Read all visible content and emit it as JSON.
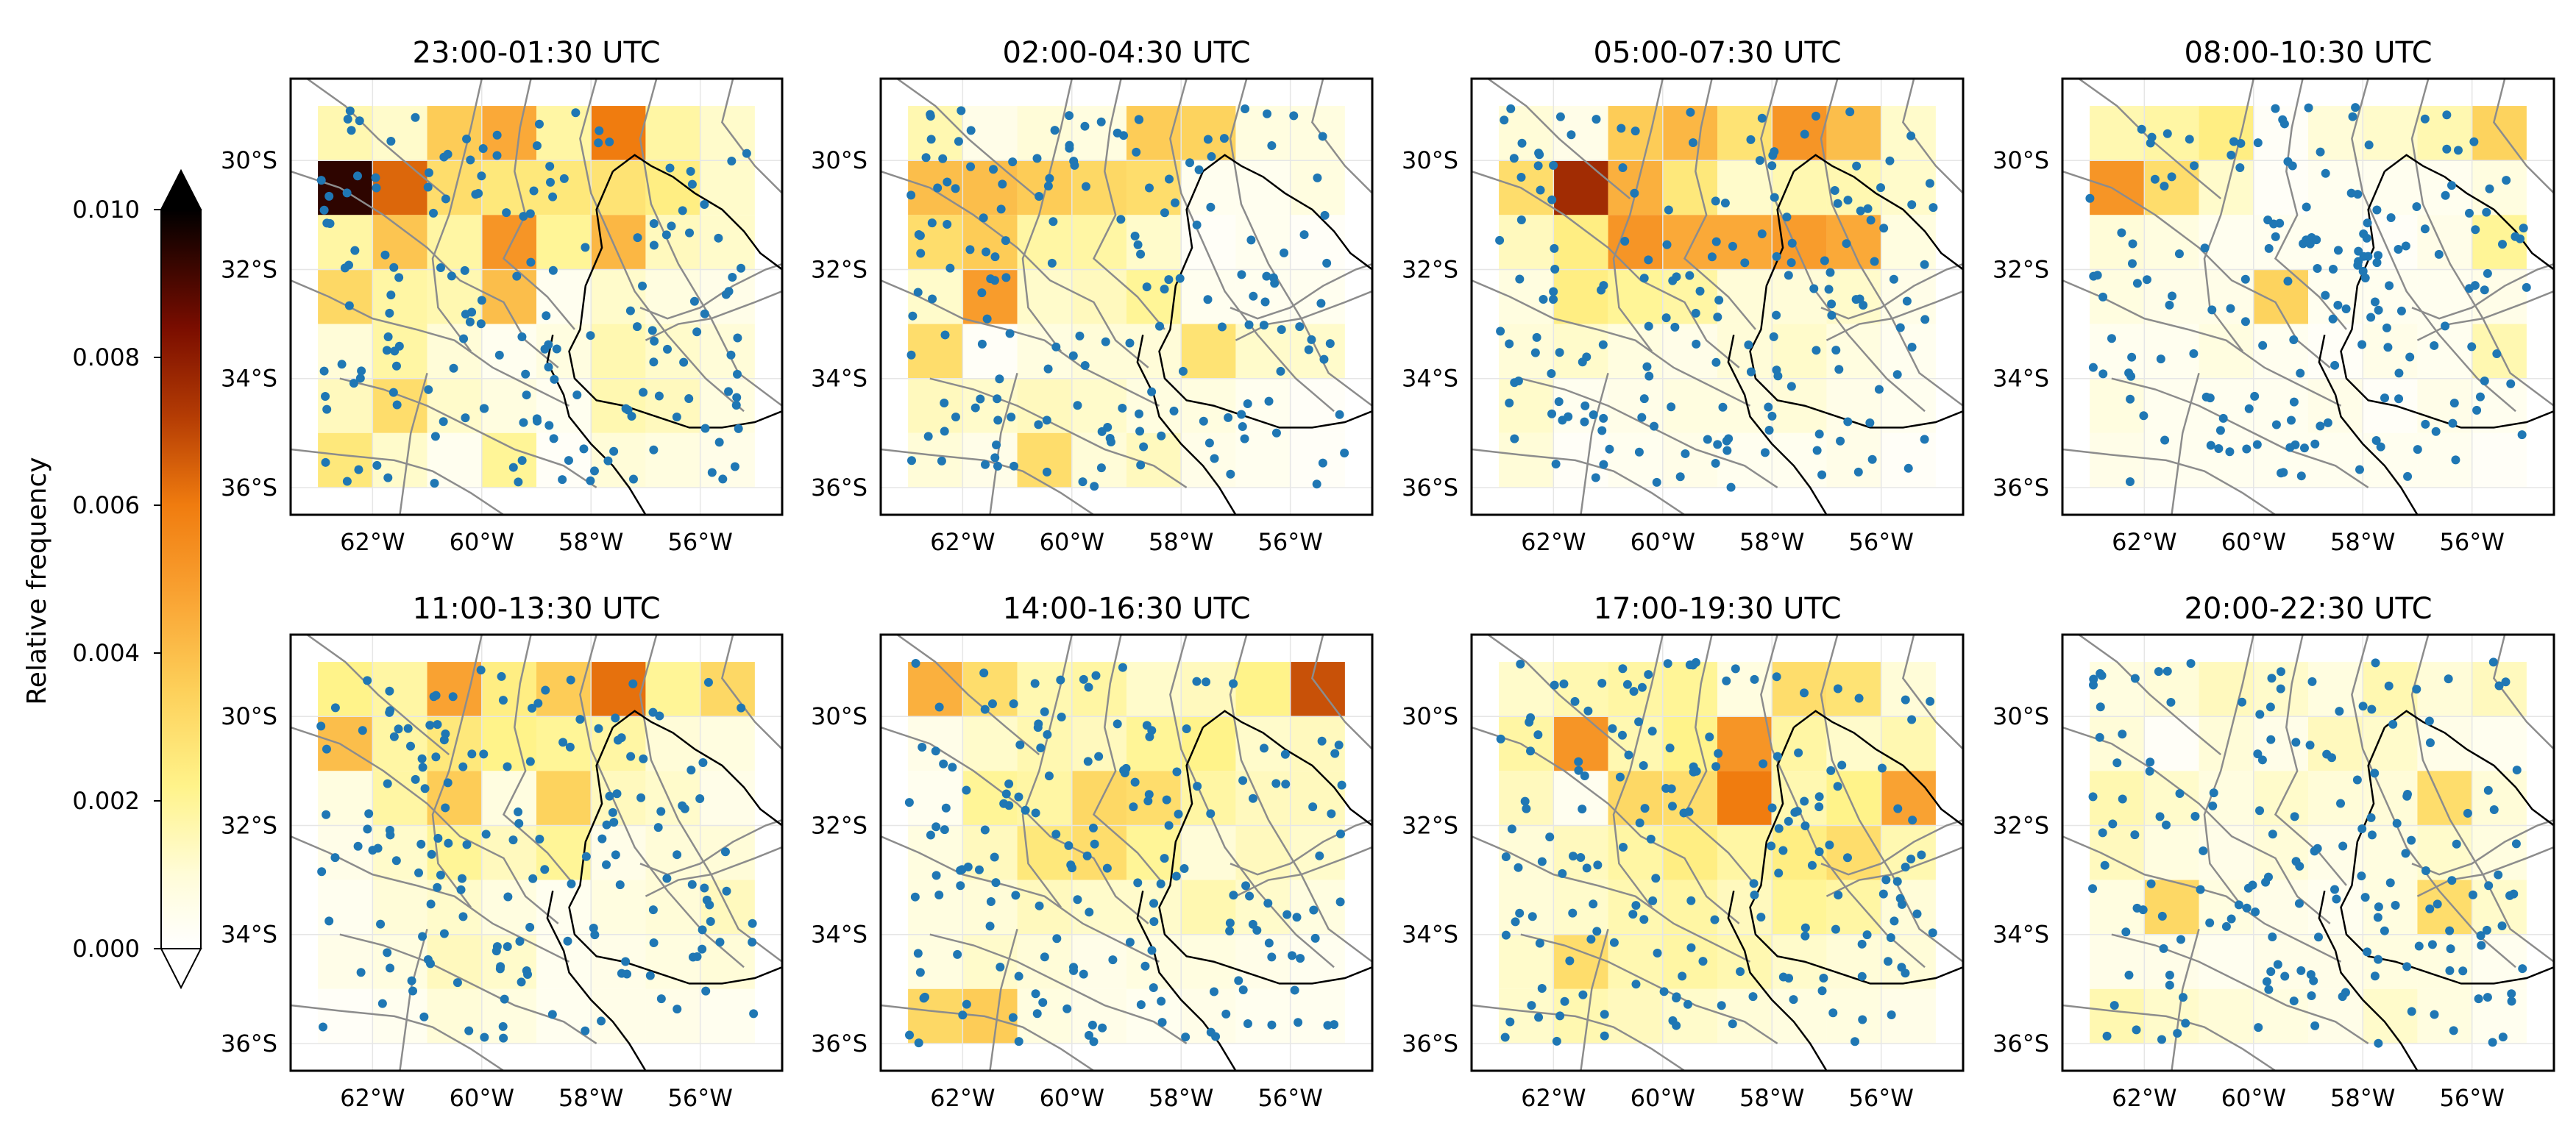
{
  "chart_data": {
    "type": "heatmap",
    "layout": "2x4 small multiples",
    "colorbar": {
      "label": "Relative frequency",
      "range": [
        0,
        0.01
      ],
      "ticks": [
        "0.000",
        "0.002",
        "0.004",
        "0.006",
        "0.008",
        "0.010"
      ],
      "extend": "both",
      "colormap": "afmhot_r"
    },
    "axes": {
      "xticks": [
        "62°W",
        "60°W",
        "58°W",
        "56°W"
      ],
      "yticks": [
        "30°S",
        "32°S",
        "34°S",
        "36°S"
      ],
      "lon_range": [
        -63.5,
        -54.5
      ],
      "lat_range": [
        -28.5,
        -36.5
      ],
      "grid_lon_edges": [
        -63,
        -62,
        -61,
        -60,
        -59,
        -58,
        -57,
        -56,
        -55
      ],
      "grid_lat_edges": [
        -29,
        -30,
        -31,
        -32,
        -33,
        -34,
        -35,
        -36
      ]
    },
    "point_color": "#1f77b4",
    "panels": [
      {
        "title": "23:00-01:30 UTC",
        "values": [
          [
            0.0016,
            0.0012,
            0.0036,
            0.0046,
            0.0018,
            0.006,
            0.0018,
            0.0012
          ],
          [
            0.0094,
            0.0064,
            0.003,
            0.0026,
            0.0026,
            0.0028,
            0.0024,
            0.0012
          ],
          [
            0.0018,
            0.0038,
            0.0018,
            0.0052,
            0.002,
            0.0042,
            0.0014,
            0.0012
          ],
          [
            0.0032,
            0.0018,
            0.0016,
            0.004,
            0.0004,
            0.0012,
            0.0008,
            0.0006
          ],
          [
            0.001,
            0.0018,
            0.001,
            0.0004,
            0.0008,
            0.0016,
            0.0012,
            0.001
          ],
          [
            0.0014,
            0.003,
            0.0012,
            0.0008,
            0.0004,
            0.0016,
            0.0014,
            0.0008
          ],
          [
            0.0026,
            0.0012,
            0.0004,
            0.002,
            0.0002,
            0.001,
            0.0008,
            0.0006
          ]
        ]
      },
      {
        "title": "02:00-04:30 UTC",
        "values": [
          [
            0.0016,
            0.0006,
            0.001,
            0.0008,
            0.0036,
            0.0034,
            0.0008,
            0.0008
          ],
          [
            0.004,
            0.004,
            0.0036,
            0.0032,
            0.003,
            0.0004,
            0.0004,
            0.0008
          ],
          [
            0.003,
            0.0036,
            0.0018,
            0.0018,
            0.0012,
            0.0002,
            0.0004,
            0.0002
          ],
          [
            0.0012,
            0.005,
            0.0012,
            0.0014,
            0.002,
            0.0004,
            0.0004,
            0.0004
          ],
          [
            0.003,
            0.0002,
            0.0008,
            0.001,
            0.001,
            0.0028,
            0.0012,
            0.0012
          ],
          [
            0.0014,
            0.0012,
            0.0014,
            0.0012,
            0.0008,
            0.0008,
            0.0004,
            0.0002
          ],
          [
            0.001,
            0.0006,
            0.003,
            0.001,
            0.0014,
            0.0006,
            0.0004,
            0.0002
          ]
        ]
      },
      {
        "title": "05:00-07:30 UTC",
        "values": [
          [
            0.001,
            0.0006,
            0.0036,
            0.0042,
            0.0028,
            0.0052,
            0.004,
            0.0012
          ],
          [
            0.003,
            0.0076,
            0.0044,
            0.0026,
            0.0012,
            0.0016,
            0.0016,
            0.0012
          ],
          [
            0.0014,
            0.0024,
            0.0052,
            0.0046,
            0.0046,
            0.005,
            0.0046,
            0.0008
          ],
          [
            0.0008,
            0.0024,
            0.002,
            0.0018,
            0.001,
            0.001,
            0.0012,
            0.0006
          ],
          [
            0.001,
            0.0012,
            0.0008,
            0.0006,
            0.001,
            0.0012,
            0.0008,
            0.0004
          ],
          [
            0.0012,
            0.0004,
            0.0006,
            0.0008,
            0.0008,
            0.001,
            0.0006,
            0.0004
          ],
          [
            0.001,
            0.0002,
            0.0004,
            0.0006,
            0.0004,
            0.0004,
            0.0006,
            0.0002
          ]
        ]
      },
      {
        "title": "08:00-10:30 UTC",
        "values": [
          [
            0.0016,
            0.0018,
            0.0024,
            0.0002,
            0.001,
            0.0012,
            0.0016,
            0.0034
          ],
          [
            0.0052,
            0.003,
            0.0012,
            0.0002,
            0.0004,
            0.0004,
            0.0004,
            0.0008
          ],
          [
            0.001,
            0.0008,
            0.0004,
            0.0004,
            0.0004,
            0.0002,
            0.0006,
            0.002
          ],
          [
            0.0008,
            0.0006,
            0.0006,
            0.0034,
            0.0004,
            0.0004,
            0.0004,
            0.0006
          ],
          [
            0.0004,
            0.0004,
            0.0008,
            0.0004,
            0.0002,
            0.0006,
            0.0004,
            0.0016
          ],
          [
            0.0008,
            0.0004,
            0.0004,
            0.0004,
            0.0006,
            0.0002,
            0.0006,
            0.0004
          ],
          [
            0.0006,
            0.0004,
            0.0004,
            0.0004,
            0.0004,
            0.0004,
            0.0004,
            0.0002
          ]
        ]
      },
      {
        "title": "11:00-13:30 UTC",
        "values": [
          [
            0.0022,
            0.0018,
            0.0048,
            0.0024,
            0.0036,
            0.0062,
            0.002,
            0.0032
          ],
          [
            0.004,
            0.0018,
            0.0026,
            0.0022,
            0.002,
            0.0018,
            0.001,
            0.0008
          ],
          [
            0.0008,
            0.0018,
            0.0036,
            0.0008,
            0.0034,
            0.0014,
            0.0012,
            0.0006
          ],
          [
            0.0006,
            0.0012,
            0.002,
            0.0014,
            0.002,
            0.0006,
            0.001,
            0.001
          ],
          [
            0.0004,
            0.001,
            0.0012,
            0.0008,
            0.0004,
            0.0008,
            0.001,
            0.0014
          ],
          [
            0.0006,
            0.0008,
            0.0014,
            0.0012,
            0.0004,
            0.0006,
            0.0008,
            0.001
          ],
          [
            0.0002,
            0.0004,
            0.001,
            0.0008,
            0.0004,
            0.0006,
            0.0006,
            0.0004
          ]
        ]
      },
      {
        "title": "14:00-16:30 UTC",
        "values": [
          [
            0.0044,
            0.003,
            0.0016,
            0.0018,
            0.0012,
            0.0014,
            0.0022,
            0.0068
          ],
          [
            0.0006,
            0.0012,
            0.0016,
            0.0014,
            0.002,
            0.0022,
            0.0012,
            0.0014
          ],
          [
            0.0004,
            0.002,
            0.0018,
            0.0032,
            0.003,
            0.0018,
            0.0014,
            0.0014
          ],
          [
            0.0008,
            0.0014,
            0.0026,
            0.003,
            0.002,
            0.001,
            0.0014,
            0.0012
          ],
          [
            0.0008,
            0.001,
            0.0014,
            0.0012,
            0.0012,
            0.0016,
            0.0012,
            0.0008
          ],
          [
            0.0008,
            0.0012,
            0.001,
            0.0006,
            0.0008,
            0.0008,
            0.0006,
            0.0004
          ],
          [
            0.0032,
            0.0036,
            0.0008,
            0.0006,
            0.0004,
            0.0006,
            0.0004,
            0.0004
          ]
        ]
      },
      {
        "title": "17:00-19:30 UTC",
        "values": [
          [
            0.0012,
            0.0016,
            0.0018,
            0.002,
            0.0008,
            0.003,
            0.0028,
            0.001
          ],
          [
            0.0018,
            0.0052,
            0.0016,
            0.0022,
            0.0052,
            0.0018,
            0.0012,
            0.0016
          ],
          [
            0.0014,
            0.0004,
            0.0032,
            0.003,
            0.006,
            0.0016,
            0.0022,
            0.0048
          ],
          [
            0.001,
            0.0014,
            0.0018,
            0.0024,
            0.0018,
            0.0024,
            0.003,
            0.0016
          ],
          [
            0.001,
            0.0012,
            0.0016,
            0.0018,
            0.0014,
            0.002,
            0.0018,
            0.001
          ],
          [
            0.0012,
            0.003,
            0.0016,
            0.0018,
            0.0016,
            0.0012,
            0.001,
            0.001
          ],
          [
            0.0012,
            0.0016,
            0.0014,
            0.0012,
            0.001,
            0.0008,
            0.0008,
            0.0006
          ]
        ]
      },
      {
        "title": "20:00-22:30 UTC",
        "values": [
          [
            0.0008,
            0.001,
            0.0014,
            0.0012,
            0.0008,
            0.0016,
            0.001,
            0.0014
          ],
          [
            0.001,
            0.0002,
            0.001,
            0.0006,
            0.0014,
            0.0012,
            0.0006,
            0.0004
          ],
          [
            0.0016,
            0.0012,
            0.0008,
            0.0012,
            0.001,
            0.001,
            0.003,
            0.001
          ],
          [
            0.0014,
            0.0008,
            0.0006,
            0.001,
            0.0006,
            0.0008,
            0.0012,
            0.0008
          ],
          [
            0.0008,
            0.0032,
            0.0008,
            0.0006,
            0.0004,
            0.0008,
            0.003,
            0.0012
          ],
          [
            0.0006,
            0.0006,
            0.0004,
            0.0006,
            0.0006,
            0.0008,
            0.0008,
            0.0004
          ],
          [
            0.0016,
            0.0012,
            0.001,
            0.0008,
            0.0006,
            0.0012,
            0.0008,
            0.0004
          ]
        ]
      }
    ]
  }
}
